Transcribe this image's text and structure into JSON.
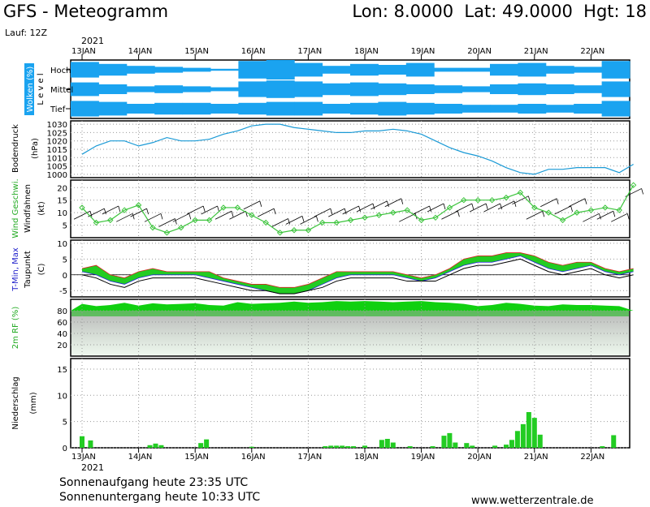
{
  "header": {
    "title": "GFS - Meteogramm",
    "location": "Lon: 8.0000  Lat: 49.0000  Hgt: 18",
    "run": "Lauf: 12Z"
  },
  "footer": {
    "sunrise": "Sonnenaufgang heute 23:35 UTC",
    "sunset": "Sonnenuntergang heute 10:33 UTC",
    "site": "www.wetterzentrale.de"
  },
  "axis": {
    "year": "2021",
    "dates": [
      "13JAN",
      "14JAN",
      "15JAN",
      "16JAN",
      "17JAN",
      "18JAN",
      "19JAN",
      "20JAN",
      "21JAN",
      "22JAN"
    ]
  },
  "colors": {
    "cloud": "#1aa3f0",
    "pressure": "#1a9ad6",
    "wind_line": "#3cc43c",
    "temp_fill": "#22cc22",
    "rh": "#10d010",
    "precip": "#22cc22"
  },
  "chart_data": [
    {
      "type": "area",
      "panel": "clouds",
      "ylabel": "Wolken (%)",
      "ylabel2": "L e v e l",
      "levels": [
        "Hoch",
        "Mittel",
        "Tief"
      ],
      "x": [
        "13JAN",
        "13.5",
        "14JAN",
        "14.5",
        "15JAN",
        "15.5",
        "16JAN",
        "16.5",
        "17JAN",
        "17.5",
        "18JAN",
        "18.5",
        "19JAN",
        "19.5",
        "20JAN",
        "20.5",
        "21JAN",
        "21.5",
        "22JAN",
        "22.5"
      ],
      "series": [
        {
          "name": "Hoch",
          "values": [
            80,
            60,
            40,
            30,
            20,
            10,
            90,
            100,
            70,
            40,
            60,
            50,
            70,
            20,
            20,
            60,
            70,
            40,
            30,
            90
          ]
        },
        {
          "name": "Mittel",
          "values": [
            70,
            50,
            30,
            40,
            30,
            20,
            80,
            90,
            80,
            60,
            70,
            60,
            50,
            40,
            30,
            50,
            60,
            50,
            40,
            80
          ]
        },
        {
          "name": "Tief",
          "values": [
            80,
            70,
            50,
            60,
            60,
            50,
            60,
            70,
            70,
            50,
            60,
            70,
            60,
            50,
            40,
            40,
            50,
            40,
            50,
            80
          ]
        }
      ]
    },
    {
      "type": "line",
      "panel": "pressure",
      "ylabel": "Bodendruck",
      "ylabel2": "(hPa)",
      "ylim": [
        998,
        1032
      ],
      "yticks": [
        "1030",
        "1025",
        "1020",
        "1015",
        "1010",
        "1005",
        "1000"
      ],
      "x": [
        13.0,
        13.25,
        13.5,
        13.75,
        14.0,
        14.25,
        14.5,
        14.75,
        15.0,
        15.25,
        15.5,
        15.75,
        16.0,
        16.25,
        16.5,
        16.75,
        17.0,
        17.25,
        17.5,
        17.75,
        18.0,
        18.25,
        18.5,
        18.75,
        19.0,
        19.25,
        19.5,
        19.75,
        20.0,
        20.25,
        20.5,
        20.75,
        21.0,
        21.25,
        21.5,
        21.75,
        22.0,
        22.25,
        22.5,
        22.75
      ],
      "values": [
        1012,
        1017,
        1020,
        1020,
        1017,
        1019,
        1022,
        1020,
        1020,
        1021,
        1024,
        1026,
        1029,
        1030,
        1030,
        1028,
        1027,
        1026,
        1025,
        1025,
        1026,
        1026,
        1027,
        1026,
        1024,
        1020,
        1016,
        1013,
        1011,
        1008,
        1004,
        1001,
        1000,
        1003,
        1003,
        1004,
        1004,
        1004,
        1001,
        1006
      ]
    },
    {
      "type": "line",
      "panel": "wind",
      "ylabel": "Wind Geschwi.",
      "ylabel2": "Windfahnen",
      "ylabel3": "(kt)",
      "ylim": [
        0,
        23
      ],
      "yticks": [
        "20",
        "15",
        "10",
        "5"
      ],
      "x": [
        13.0,
        13.25,
        13.5,
        13.75,
        14.0,
        14.25,
        14.5,
        14.75,
        15.0,
        15.25,
        15.5,
        15.75,
        16.0,
        16.25,
        16.5,
        16.75,
        17.0,
        17.25,
        17.5,
        17.75,
        18.0,
        18.25,
        18.5,
        18.75,
        19.0,
        19.25,
        19.5,
        19.75,
        20.0,
        20.25,
        20.5,
        20.75,
        21.0,
        21.25,
        21.5,
        21.75,
        22.0,
        22.25,
        22.5,
        22.75
      ],
      "values": [
        12,
        6,
        7,
        11,
        13,
        4,
        2,
        4,
        7,
        7,
        12,
        12,
        9,
        6,
        2,
        3,
        3,
        6,
        6,
        7,
        8,
        9,
        10,
        11,
        7,
        8,
        12,
        15,
        15,
        15,
        16,
        18,
        12,
        10,
        7,
        10,
        11,
        12,
        11,
        21
      ]
    },
    {
      "type": "area",
      "panel": "temperature",
      "ylabel": "T-Min, Max",
      "ylabel2": "Taupunkt",
      "ylabel3": "(C)",
      "ylim": [
        -7,
        11
      ],
      "yticks": [
        "10",
        "5",
        "0",
        "-5"
      ],
      "x": [
        13.0,
        13.25,
        13.5,
        13.75,
        14.0,
        14.25,
        14.5,
        14.75,
        15.0,
        15.25,
        15.5,
        15.75,
        16.0,
        16.25,
        16.5,
        16.75,
        17.0,
        17.25,
        17.5,
        17.75,
        18.0,
        18.25,
        18.5,
        18.75,
        19.0,
        19.25,
        19.5,
        19.75,
        20.0,
        20.25,
        20.5,
        20.75,
        21.0,
        21.25,
        21.5,
        21.75,
        22.0,
        22.25,
        22.5,
        22.75
      ],
      "series": [
        {
          "name": "T-Max",
          "values": [
            2,
            3,
            0,
            -1,
            1,
            2,
            1,
            1,
            1,
            1,
            -1,
            -2,
            -3,
            -3,
            -4,
            -4,
            -3,
            -1,
            1,
            1,
            1,
            1,
            1,
            0,
            -1,
            0,
            2,
            5,
            6,
            6,
            7,
            7,
            6,
            4,
            3,
            4,
            4,
            2,
            1,
            2
          ]
        },
        {
          "name": "T-Min",
          "values": [
            1,
            0,
            -2,
            -3,
            -1,
            0,
            0,
            0,
            0,
            -1,
            -2,
            -3,
            -4,
            -5,
            -6,
            -6,
            -5,
            -3,
            -1,
            0,
            0,
            0,
            0,
            -1,
            -2,
            -1,
            1,
            3,
            4,
            4,
            5,
            6,
            4,
            2,
            1,
            2,
            3,
            1,
            0,
            1
          ]
        },
        {
          "name": "Taupunkt",
          "values": [
            0,
            -1,
            -3,
            -4,
            -2,
            -1,
            -1,
            -1,
            -1,
            -2,
            -3,
            -4,
            -5,
            -5,
            -6,
            -6,
            -5,
            -4,
            -2,
            -1,
            -1,
            -1,
            -1,
            -2,
            -2,
            -2,
            0,
            2,
            3,
            3,
            4,
            5,
            3,
            1,
            0,
            1,
            2,
            0,
            -1,
            0
          ]
        }
      ]
    },
    {
      "type": "area",
      "panel": "humidity",
      "ylabel": "2m RF (%)",
      "ylim": [
        0,
        100
      ],
      "yticks": [
        "80",
        "60",
        "40",
        "20"
      ],
      "x": [
        13.0,
        13.25,
        13.5,
        13.75,
        14.0,
        14.25,
        14.5,
        14.75,
        15.0,
        15.25,
        15.5,
        15.75,
        16.0,
        16.25,
        16.5,
        16.75,
        17.0,
        17.25,
        17.5,
        17.75,
        18.0,
        18.25,
        18.5,
        18.75,
        19.0,
        19.25,
        19.5,
        19.75,
        20.0,
        20.25,
        20.5,
        20.75,
        21.0,
        21.25,
        21.5,
        21.75,
        22.0,
        22.25,
        22.5,
        22.75
      ],
      "values": [
        92,
        88,
        90,
        94,
        89,
        93,
        91,
        92,
        93,
        90,
        89,
        95,
        92,
        93,
        94,
        96,
        94,
        95,
        97,
        96,
        97,
        96,
        95,
        96,
        97,
        95,
        94,
        92,
        88,
        90,
        94,
        92,
        89,
        88,
        91,
        90,
        90,
        89,
        88,
        80
      ]
    },
    {
      "type": "bar",
      "panel": "precipitation",
      "ylabel": "Niederschlag",
      "ylabel2": "(mm)",
      "ylim": [
        0,
        17
      ],
      "yticks": [
        "15",
        "10",
        "5",
        "0"
      ],
      "x": [
        13.0,
        13.15,
        14.2,
        14.3,
        14.4,
        15.1,
        15.2,
        16.0,
        17.3,
        17.4,
        17.5,
        17.6,
        17.7,
        17.8,
        18.0,
        18.3,
        18.4,
        18.5,
        18.8,
        19.2,
        19.4,
        19.5,
        19.6,
        19.8,
        19.9,
        20.3,
        20.5,
        20.6,
        20.7,
        20.8,
        20.9,
        21.0,
        21.1,
        22.2,
        22.4
      ],
      "values": [
        2.2,
        1.4,
        0.5,
        0.8,
        0.5,
        0.9,
        1.6,
        0.2,
        0.3,
        0.4,
        0.4,
        0.4,
        0.3,
        0.3,
        0.4,
        1.5,
        1.7,
        1.0,
        0.3,
        0.3,
        2.3,
        2.8,
        1.0,
        0.9,
        0.4,
        0.4,
        0.6,
        1.5,
        3.2,
        4.5,
        6.8,
        5.7,
        2.5,
        0.3,
        2.4
      ]
    }
  ]
}
